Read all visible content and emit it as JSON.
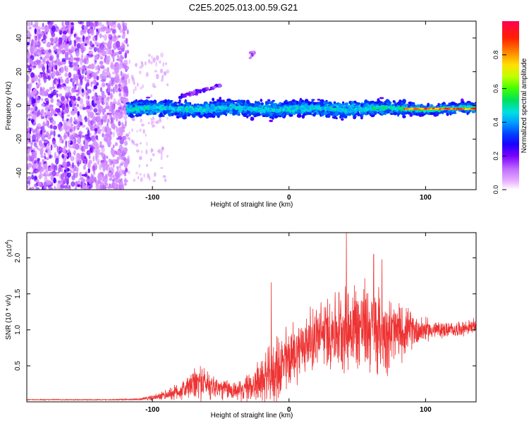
{
  "title": "C2E5.2025.013.00.59.G21",
  "chart_data": [
    {
      "type": "heatmap",
      "xlabel": "Height of straight line (km)",
      "ylabel": "Frequency (Hz)",
      "xlim": [
        -192,
        137
      ],
      "ylim": [
        -50,
        50
      ],
      "xticks": [
        -100,
        0,
        100
      ],
      "yticks": [
        -40,
        -20,
        0,
        20,
        40
      ],
      "colorbar": {
        "label": "Normalized spectral amplitude",
        "range": [
          0.0,
          1.0
        ],
        "ticks": [
          0.0,
          0.2,
          0.4,
          0.6,
          0.8
        ],
        "tick_labels": [
          "0.0",
          "0.2",
          "0.4",
          "0.6",
          "0.8"
        ],
        "colors": [
          "#ffffff",
          "#e9b0ff",
          "#c070ff",
          "#7a00ff",
          "#1a00ff",
          "#0040ff",
          "#00a0ff",
          "#00e0e0",
          "#00e060",
          "#40ff00",
          "#c0ff00",
          "#ffe000",
          "#ff8000",
          "#ff2000",
          "#ff0050"
        ]
      },
      "regions": [
        {
          "name": "noise",
          "x_range": [
            -192,
            -118
          ],
          "freq_range": [
            -50,
            50
          ],
          "amplitude_range": [
            0.1,
            0.25
          ]
        },
        {
          "name": "signal-band",
          "x_range": [
            -118,
            137
          ],
          "center_freq": -2,
          "halfwidth_hz": 5,
          "amplitude_range": [
            0.2,
            0.5
          ]
        },
        {
          "name": "strong-signal",
          "x_range": [
            85,
            137
          ],
          "center_freq": -2,
          "amplitude_range": [
            0.7,
            1.0
          ]
        },
        {
          "name": "bump",
          "x_range": [
            -80,
            -50
          ],
          "freq_range": [
            5,
            12
          ],
          "amplitude_range": [
            0.15,
            0.3
          ]
        },
        {
          "name": "blob",
          "x_range": [
            -30,
            -25
          ],
          "freq_range": [
            28,
            32
          ],
          "amplitude_range": [
            0.1,
            0.2
          ]
        }
      ]
    },
    {
      "type": "line",
      "xlabel": "Height of straight line (km)",
      "ylabel": "SNR (10 * v/v)",
      "yscale_label": "(x10",
      "yscale_exp": "4",
      "xlim": [
        -192,
        137
      ],
      "ylim": [
        0,
        23500
      ],
      "xticks": [
        -100,
        0,
        100
      ],
      "yticks": [
        5000,
        10000,
        15000,
        20000
      ],
      "ytick_labels": [
        "0.5",
        "1.0",
        "1.5",
        "2.0"
      ],
      "color": "#ee3333",
      "envelope": {
        "x": [
          -192,
          -130,
          -110,
          -95,
          -80,
          -65,
          -60,
          -50,
          -35,
          -25,
          -15,
          -5,
          5,
          15,
          25,
          35,
          45,
          55,
          65,
          75,
          90,
          105,
          120,
          137
        ],
        "mean": [
          300,
          300,
          350,
          700,
          1500,
          2800,
          2500,
          1800,
          1500,
          2500,
          3500,
          5000,
          7000,
          8500,
          9500,
          10000,
          10500,
          10500,
          10000,
          9500,
          10000,
          10000,
          10000,
          10500
        ],
        "amp": [
          80,
          80,
          150,
          600,
          1500,
          3000,
          2500,
          1800,
          1600,
          3000,
          4500,
          6000,
          5000,
          5000,
          5500,
          6500,
          7500,
          7500,
          7000,
          6000,
          3000,
          1500,
          1200,
          1200
        ]
      },
      "peaks": [
        {
          "x": -13,
          "y": 16600
        },
        {
          "x": 42,
          "y": 23500
        },
        {
          "x": 62,
          "y": 20500
        },
        {
          "x": 68,
          "y": 19800
        }
      ]
    }
  ]
}
